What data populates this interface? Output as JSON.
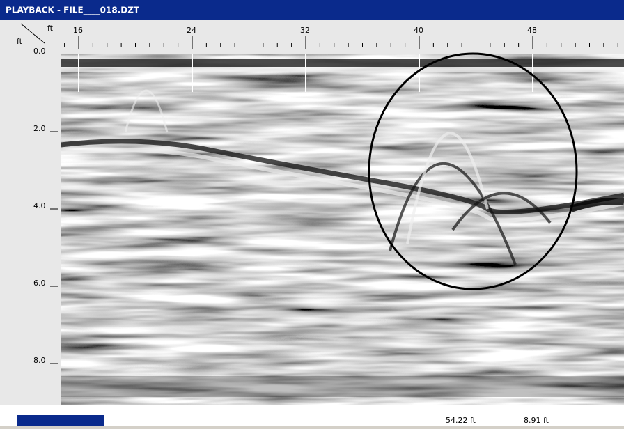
{
  "window": {
    "title": "PLAYBACK - FILE____018.DZT"
  },
  "ruler": {
    "x_unit": "ft",
    "y_unit": "ft",
    "x_labels": [
      "16",
      "24",
      "32",
      "40",
      "48"
    ],
    "y_labels": [
      "0.0",
      "2.0",
      "4.0",
      "6.0",
      "8.0"
    ]
  },
  "status": {
    "position": "54.22 ft",
    "depth": "8.91 ft"
  }
}
